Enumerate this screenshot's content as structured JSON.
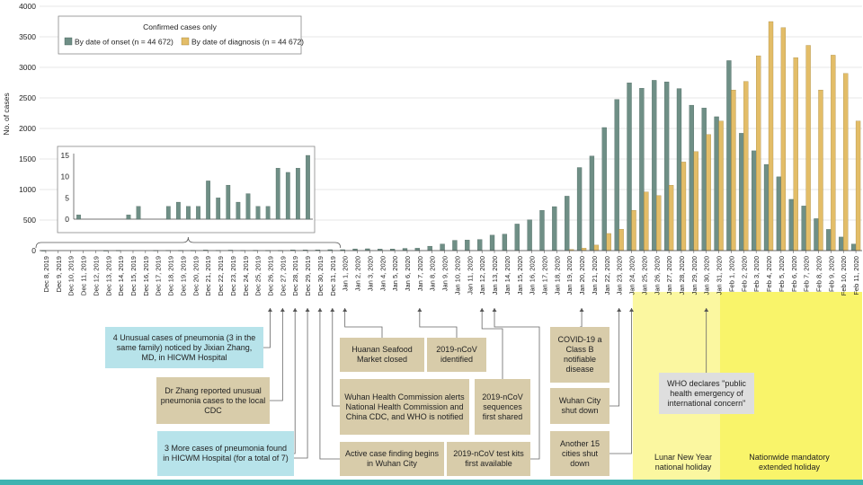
{
  "chart_data": {
    "type": "bar",
    "ylabel": "No. of cases",
    "ylim": [
      0,
      4000
    ],
    "yticks": [
      0,
      500,
      1000,
      1500,
      2000,
      2500,
      3000,
      3500,
      4000
    ],
    "legend": {
      "title": "Confirmed cases only",
      "placement": "top-left"
    },
    "categories": [
      "Dec 8, 2019",
      "Dec 9, 2019",
      "Dec 10, 2019",
      "Dec 11, 2019",
      "Dec 12, 2019",
      "Dec 13, 2019",
      "Dec 14, 2019",
      "Dec 15, 2019",
      "Dec 16, 2019",
      "Dec 17, 2019",
      "Dec 18, 2019",
      "Dec 19, 2019",
      "Dec 20, 2019",
      "Dec 21, 2019",
      "Dec 22, 2019",
      "Dec 23, 2019",
      "Dec 24, 2019",
      "Dec 25, 2019",
      "Dec 26, 2019",
      "Dec 27, 2019",
      "Dec 28, 2019",
      "Dec 29, 2019",
      "Dec 30, 2019",
      "Dec 31, 2019",
      "Jan 1, 2020",
      "Jan 2, 2020",
      "Jan 3, 2020",
      "Jan 4, 2020",
      "Jan 5, 2020",
      "Jan 6, 2020",
      "Jan 7, 2020",
      "Jan 8, 2020",
      "Jan 9, 2020",
      "Jan 10, 2020",
      "Jan 11, 2020",
      "Jan 12, 2020",
      "Jan 13, 2020",
      "Jan 14, 2020",
      "Jan 15, 2020",
      "Jan 16, 2020",
      "Jan 17, 2020",
      "Jan 18, 2020",
      "Jan 19, 2020",
      "Jan 20, 2020",
      "Jan 21, 2020",
      "Jan 22, 2020",
      "Jan 23, 2020",
      "Jan 24, 2020",
      "Jan 25, 2020",
      "Jan 26, 2020",
      "Jan 27, 2020",
      "Jan 28, 2020",
      "Jan 29, 2020",
      "Jan 30, 2020",
      "Jan 31, 2020",
      "Feb 1, 2020",
      "Feb 2, 2020",
      "Feb 3, 2020",
      "Feb 4, 2020",
      "Feb 5, 2020",
      "Feb 6, 2020",
      "Feb 7, 2020",
      "Feb 8, 2020",
      "Feb 9, 2020",
      "Feb 10, 2020",
      "Feb 11, 2020"
    ],
    "series": [
      {
        "name": "By date of onset (n = 44 672)",
        "color": "#6f8f86",
        "values": [
          1,
          0,
          0,
          0,
          0,
          1,
          3,
          0,
          0,
          3,
          4,
          3,
          3,
          9,
          5,
          8,
          4,
          6,
          3,
          3,
          12,
          11,
          12,
          15,
          15,
          28,
          30,
          25,
          27,
          36,
          39,
          72,
          108,
          168,
          173,
          182,
          253,
          270,
          435,
          504,
          659,
          720,
          891,
          1360,
          1549,
          2015,
          2475,
          2747,
          2659,
          2788,
          2763,
          2653,
          2381,
          2335,
          2192,
          3111,
          1921,
          1634,
          1411,
          1208,
          839,
          730,
          523,
          347,
          222,
          108
        ],
        "note": "first 24 values (Dec 8–Dec 31) are shown enlarged in the inset; remaining values are estimated from gridlines"
      },
      {
        "name": "By date of diagnosis (n = 44 672)",
        "color": "#e3bd68",
        "values": [
          0,
          0,
          0,
          0,
          0,
          0,
          0,
          0,
          0,
          0,
          0,
          0,
          0,
          0,
          0,
          0,
          0,
          0,
          0,
          0,
          0,
          0,
          0,
          0,
          0,
          0,
          0,
          0,
          0,
          0,
          0,
          0,
          0,
          0,
          0,
          0,
          0,
          0,
          0,
          0,
          0,
          0,
          18,
          40,
          90,
          280,
          350,
          660,
          960,
          900,
          1070,
          1450,
          1620,
          1900,
          2120,
          2630,
          2770,
          3190,
          3750,
          3650,
          3160,
          3360,
          2630,
          3200,
          2900,
          2120
        ]
      }
    ],
    "inset": {
      "range": [
        "Dec 8, 2019",
        "Dec 31, 2019"
      ],
      "ylim": [
        0,
        15
      ],
      "yticks": [
        0,
        5,
        10,
        15
      ]
    }
  },
  "annotations": [
    {
      "id": "a1",
      "text": "4 Unusual cases of pneumonia (3 in the same family) noticed by Jixian Zhang, MD, in HICWM Hospital",
      "style": "blue"
    },
    {
      "id": "a2",
      "text": "Dr Zhang reported unusual pneumonia cases to the local CDC",
      "style": "tan"
    },
    {
      "id": "a3",
      "text": "3 More cases of pneumonia found in HICWM Hospital (for a total of 7)",
      "style": "blue"
    },
    {
      "id": "a4",
      "text": "Huanan Seafood Market closed",
      "style": "tan"
    },
    {
      "id": "a5",
      "text": "2019-nCoV identified",
      "style": "tan"
    },
    {
      "id": "a6",
      "text": "Wuhan Health Commission alerts National Health Commission and China CDC, and WHO is notified",
      "style": "tan"
    },
    {
      "id": "a7",
      "text": "2019-nCoV sequences first shared",
      "style": "tan"
    },
    {
      "id": "a8",
      "text": "Active case finding begins in Wuhan City",
      "style": "tan"
    },
    {
      "id": "a9",
      "text": "2019-nCoV test kits first available",
      "style": "tan"
    },
    {
      "id": "a10",
      "text": "COVID-19 a Class B notifiable disease",
      "style": "tan"
    },
    {
      "id": "a11",
      "text": "Wuhan City shut down",
      "style": "tan"
    },
    {
      "id": "a12",
      "text": "Another 15 cities shut down",
      "style": "tan"
    },
    {
      "id": "a13",
      "text": "WHO declares \"public health emergency of international concern\"",
      "style": "grey"
    }
  ],
  "holidays": [
    {
      "label": "Lunar New Year national holiday",
      "color": "#fbf7a0"
    },
    {
      "label": "Nationwide mandatory extended holiday",
      "color": "#f9f46a"
    }
  ],
  "colors": {
    "teal_bar": "#3fb3b0"
  }
}
